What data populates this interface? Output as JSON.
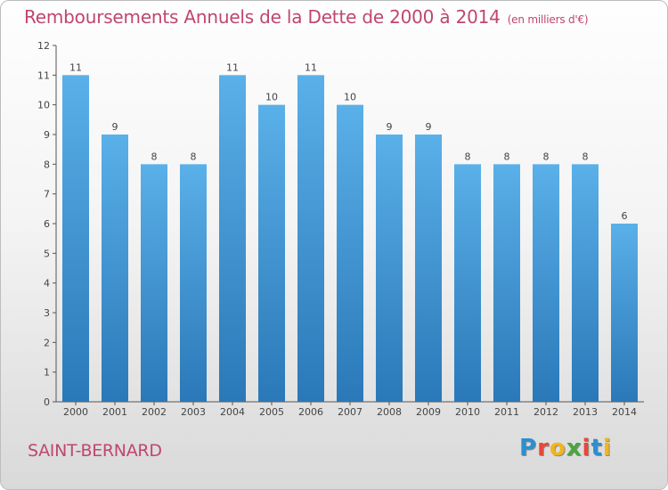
{
  "title": {
    "main": "Remboursements Annuels de la Dette de 2000 à 2014",
    "unit": "(en milliers d'€)"
  },
  "commune": "SAINT-BERNARD",
  "logo": {
    "text": "Proxiti",
    "letters": [
      {
        "char": "P",
        "color": "#2d8fd0"
      },
      {
        "char": "r",
        "color": "#e8483a"
      },
      {
        "char": "o",
        "color": "#f2b51d"
      },
      {
        "char": "x",
        "color": "#4aa63d"
      },
      {
        "char": "i",
        "color": "#e8483a"
      },
      {
        "char": "t",
        "color": "#2d8fd0"
      },
      {
        "char": "i",
        "color": "#f2b51d"
      }
    ]
  },
  "colors": {
    "title": "#c0466e",
    "bar_top": "#5ab0e8",
    "bar_bottom": "#2a78b8",
    "axis": "#555555",
    "label": "#444444"
  },
  "chart_data": {
    "type": "bar",
    "title": "Remboursements Annuels de la Dette de 2000 à 2014",
    "ylabel": "en milliers d'€",
    "xlabel": "",
    "categories": [
      "2000",
      "2001",
      "2002",
      "2003",
      "2004",
      "2005",
      "2006",
      "2007",
      "2008",
      "2009",
      "2010",
      "2011",
      "2012",
      "2013",
      "2014"
    ],
    "values": [
      11,
      9,
      8,
      8,
      11,
      10,
      11,
      10,
      9,
      9,
      8,
      8,
      8,
      8,
      6
    ],
    "data_labels": [
      "11",
      "9",
      "8",
      "8",
      "11",
      "10",
      "11",
      "10",
      "9",
      "9",
      "8",
      "8",
      "8",
      "8",
      "6"
    ],
    "ylim": [
      0,
      12
    ],
    "yticks": [
      0,
      1,
      2,
      3,
      4,
      5,
      6,
      7,
      8,
      9,
      10,
      11,
      12
    ],
    "grid": false,
    "legend": "none"
  }
}
